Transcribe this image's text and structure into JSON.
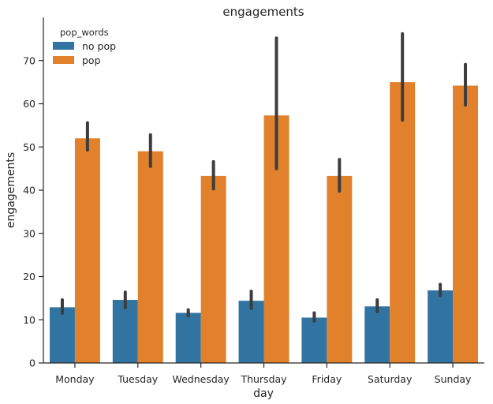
{
  "chart_data": {
    "type": "bar",
    "title": "engagements",
    "xlabel": "day",
    "ylabel": "engagements",
    "ylim": [
      0,
      80
    ],
    "yticks": [
      0,
      10,
      20,
      30,
      40,
      50,
      60,
      70
    ],
    "categories": [
      "Monday",
      "Tuesday",
      "Wednesday",
      "Thursday",
      "Friday",
      "Saturday",
      "Sunday"
    ],
    "legend": {
      "title": "pop_words",
      "placement": "top-left"
    },
    "series": [
      {
        "name": "no pop",
        "color": "#3274a1",
        "values": [
          12.9,
          14.6,
          11.6,
          14.4,
          10.5,
          13.1,
          16.8
        ],
        "ci_low": [
          11.5,
          12.8,
          10.9,
          12.6,
          9.7,
          11.9,
          15.6
        ],
        "ci_high": [
          14.6,
          16.4,
          12.3,
          16.6,
          11.6,
          14.6,
          18.2
        ]
      },
      {
        "name": "pop",
        "color": "#e1812c",
        "values": [
          52.0,
          49.0,
          43.3,
          57.3,
          43.3,
          65.0,
          64.2
        ],
        "ci_low": [
          49.3,
          45.5,
          40.3,
          45.0,
          39.8,
          56.2,
          59.7
        ],
        "ci_high": [
          55.6,
          52.8,
          46.6,
          75.2,
          47.1,
          76.2,
          69.1
        ]
      }
    ],
    "grid": false
  }
}
